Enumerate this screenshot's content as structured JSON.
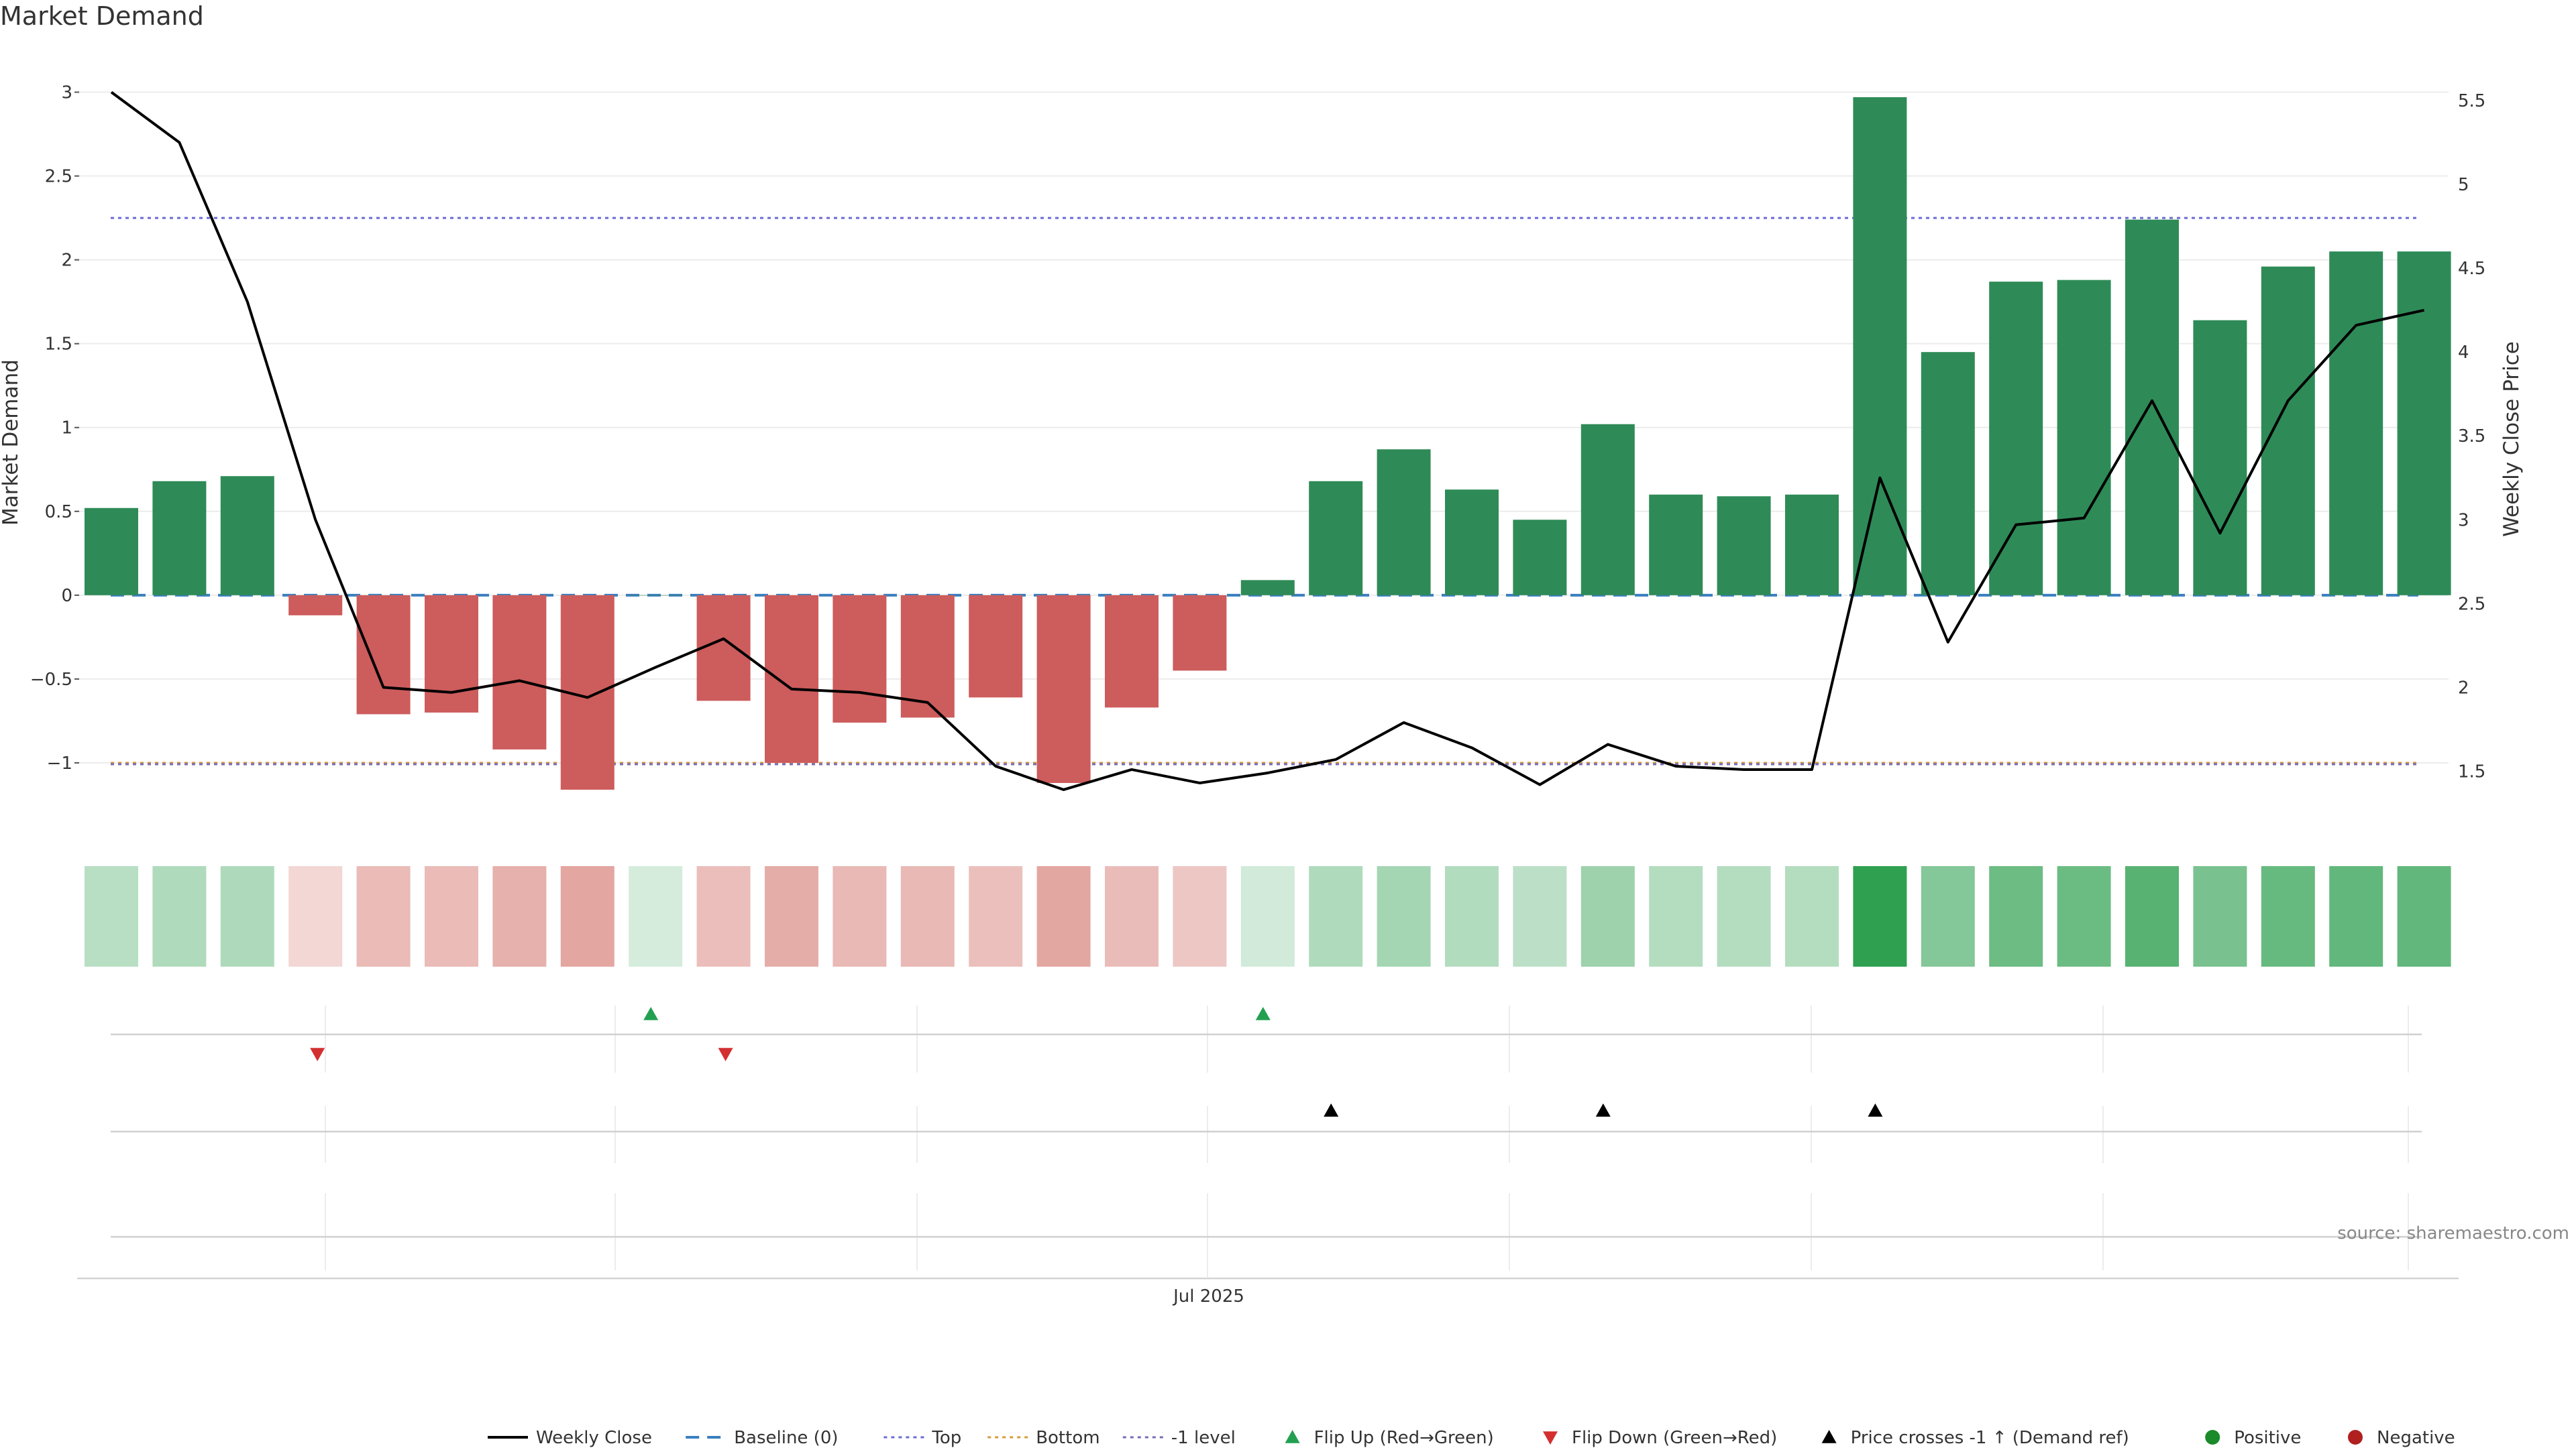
{
  "title": "Market Demand",
  "source": "source: sharemaestro.com",
  "colors": {
    "positive_bar": "#2e8b57",
    "negative_bar": "#cd5c5c",
    "close_line": "#000000",
    "baseline": "#3a7fbf",
    "top": "#6b6bd6",
    "bottom": "#d89a3a",
    "minus1": "#7a6bb5",
    "flip_up": "#22a050",
    "flip_down": "#d32f2f",
    "cross_marker": "#000000",
    "positive_dot": "#1a8a2a",
    "negative_dot": "#b02020",
    "strip_pos_rgb": "46,160,80",
    "strip_neg_rgb": "200,80,70"
  },
  "chart_data": {
    "type": "bar",
    "title": "Market Demand",
    "ylabel": "Market Demand",
    "y2label": "Weekly Close Price",
    "ylim": [
      -1.4,
      3.05
    ],
    "y2lim": [
      1.15,
      5.6
    ],
    "yticks": [
      -1,
      -0.5,
      0,
      0.5,
      1,
      1.5,
      2,
      2.5,
      3
    ],
    "ytick_labels": [
      "−1",
      "−0.5",
      "0",
      "0.5",
      "1",
      "1.5",
      "2",
      "2.5",
      "3"
    ],
    "y2ticks": [
      1.5,
      2,
      2.5,
      3,
      3.5,
      4,
      4.5,
      5,
      5.5
    ],
    "y2tick_labels": [
      "1.5",
      "2",
      "2.5",
      "3",
      "3.5",
      "4",
      "4.5",
      "5",
      "5.5"
    ],
    "x_tick_label": "Jul 2025",
    "x_tick_index": 16.5,
    "top_level": 2.25,
    "bottom_level": -1,
    "minus1_level": -1,
    "baseline": 0,
    "series": [
      {
        "name": "Market Demand",
        "values": [
          0.52,
          0.68,
          0.71,
          -0.12,
          -0.71,
          -0.7,
          -0.92,
          -1.16,
          0.0,
          -0.63,
          -1.0,
          -0.76,
          -0.73,
          -0.61,
          -1.12,
          -0.67,
          -0.45,
          0.09,
          0.68,
          0.87,
          0.63,
          0.45,
          1.02,
          0.6,
          0.59,
          0.6,
          2.97,
          1.45,
          1.87,
          1.88,
          2.24,
          1.64,
          1.96,
          2.05,
          2.05
        ]
      },
      {
        "name": "Weekly Close",
        "values": [
          5.55,
          5.25,
          4.3,
          3.0,
          2.0,
          1.97,
          2.04,
          1.94,
          2.12,
          2.29,
          1.99,
          1.97,
          1.91,
          1.53,
          1.39,
          1.51,
          1.43,
          1.49,
          1.57,
          1.79,
          1.64,
          1.42,
          1.66,
          1.53,
          1.51,
          1.51,
          3.25,
          2.27,
          2.97,
          3.01,
          3.71,
          2.92,
          3.71,
          4.16,
          4.25
        ]
      }
    ],
    "flip_up_indices": [
      8,
      17
    ],
    "flip_down_indices": [
      3,
      9
    ],
    "price_cross_indices": [
      18,
      22,
      26
    ],
    "legend": [
      {
        "label": "Weekly Close",
        "kind": "line"
      },
      {
        "label": "Baseline (0)",
        "kind": "baseline"
      },
      {
        "label": "Top",
        "kind": "top"
      },
      {
        "label": "Bottom",
        "kind": "bottom"
      },
      {
        "label": "-1 level",
        "kind": "minus1"
      },
      {
        "label": "Flip Up (Red→Green)",
        "kind": "flip_up"
      },
      {
        "label": "Flip Down (Green→Red)",
        "kind": "flip_down"
      },
      {
        "label": "Price crosses -1 ↑ (Demand ref)",
        "kind": "cross"
      },
      {
        "label": "Positive",
        "kind": "pos_dot"
      },
      {
        "label": "Negative",
        "kind": "neg_dot"
      }
    ]
  }
}
